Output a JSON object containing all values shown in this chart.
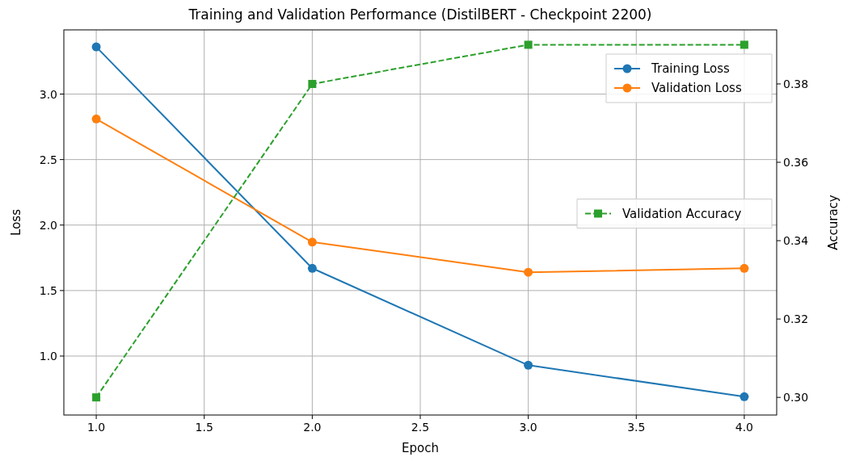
{
  "chart_data": {
    "type": "line",
    "title": "Training and Validation Performance (DistilBERT - Checkpoint 2200)",
    "xlabel": "Epoch",
    "ylabel": "Loss",
    "y2label": "Accuracy",
    "x": [
      1,
      2,
      3,
      4
    ],
    "xlim": [
      0.85,
      4.15
    ],
    "xticks": [
      {
        "value": 1,
        "label": "1.0"
      },
      {
        "value": 1.5,
        "label": "1.5"
      },
      {
        "value": 2,
        "label": "2.0"
      },
      {
        "value": 2.5,
        "label": "2.5"
      },
      {
        "value": 3,
        "label": "3.0"
      },
      {
        "value": 3.5,
        "label": "3.5"
      },
      {
        "value": 4,
        "label": "4.0"
      }
    ],
    "ylim": [
      0.55,
      3.49
    ],
    "yticks": [
      {
        "value": 1,
        "label": "1.0"
      },
      {
        "value": 1.5,
        "label": "1.5"
      },
      {
        "value": 2,
        "label": "2.0"
      },
      {
        "value": 2.5,
        "label": "2.5"
      },
      {
        "value": 3,
        "label": "3.0"
      }
    ],
    "y2lim": [
      0.2955,
      0.3938
    ],
    "y2ticks": [
      {
        "value": 0.3,
        "label": "0.30"
      },
      {
        "value": 0.32,
        "label": "0.32"
      },
      {
        "value": 0.34,
        "label": "0.34"
      },
      {
        "value": 0.36,
        "label": "0.36"
      },
      {
        "value": 0.38,
        "label": "0.38"
      }
    ],
    "grid": true,
    "legend": "top right",
    "series": [
      {
        "name": "Training Loss",
        "color": "#1f77b4",
        "values": [
          3.36,
          1.67,
          0.93,
          0.69
        ],
        "marker": "circle",
        "line_style": "solid"
      },
      {
        "name": "Validation Loss",
        "color": "#ff7f0e",
        "values": [
          2.81,
          1.87,
          1.64,
          1.67
        ],
        "marker": "circle",
        "line_style": "solid"
      },
      {
        "name": "Validation Accuracy",
        "color": "#2ca02c",
        "values": [
          0.3,
          0.38,
          0.39,
          0.39
        ],
        "marker": "square",
        "line_style": "dashed",
        "axis": "y2"
      }
    ]
  }
}
